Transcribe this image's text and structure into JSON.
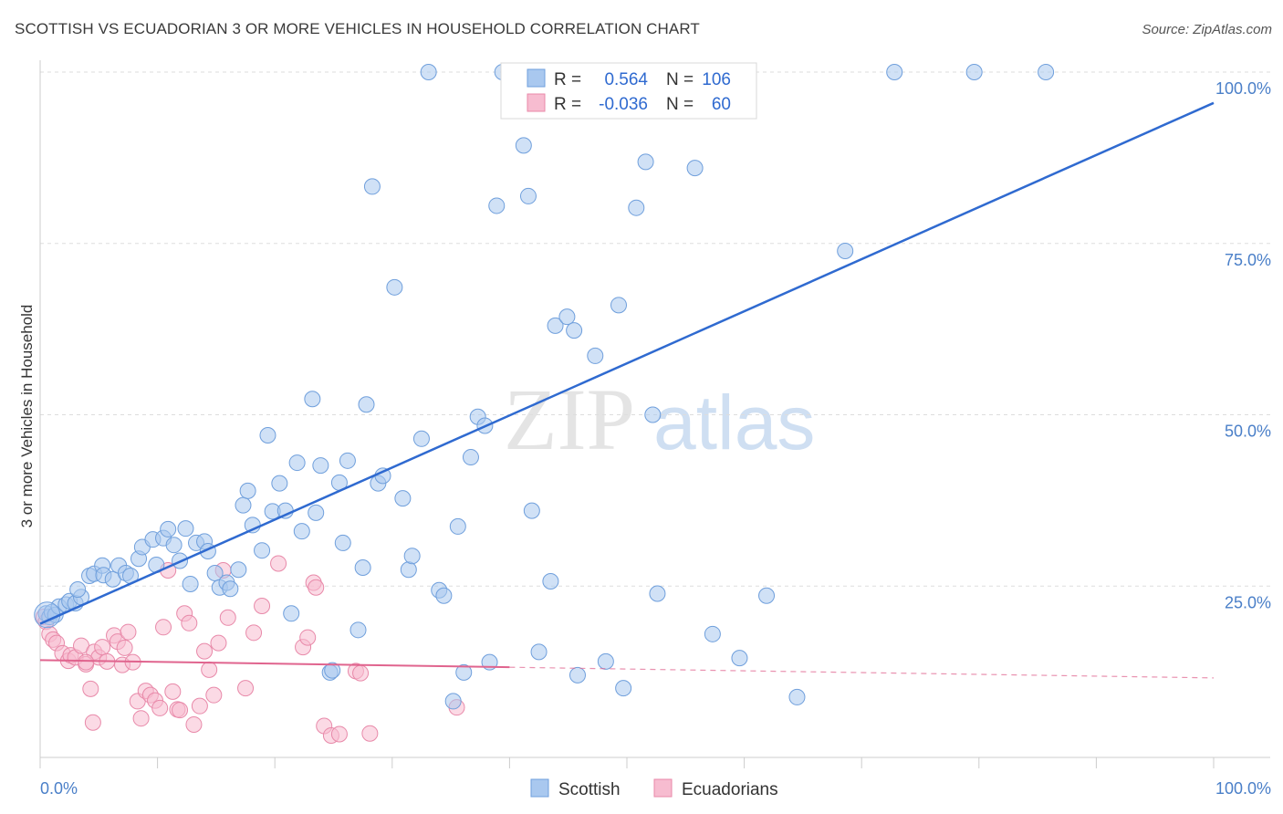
{
  "title": "SCOTTISH VS ECUADORIAN 3 OR MORE VEHICLES IN HOUSEHOLD CORRELATION CHART",
  "source": "Source: ZipAtlas.com",
  "watermark": {
    "zip": "ZIP",
    "atlas": "atlas"
  },
  "colors": {
    "scottish_fill": "#a9c8ef",
    "scottish_stroke": "#6f9fdc",
    "scottish_line": "#2f6ad0",
    "ecuadorian_fill": "#f7bcd0",
    "ecuadorian_stroke": "#e889a9",
    "ecuadorian_line": "#e0648e",
    "grid": "#dddddd",
    "tick_label": "#4a7fc8"
  },
  "legend": {
    "rows": [
      {
        "r_label": "R =",
        "r_value": "0.564",
        "n_label": "N =",
        "n_value": "106",
        "series": "scottish"
      },
      {
        "r_label": "R =",
        "r_value": "-0.036",
        "n_label": "N =",
        "n_value": "60",
        "series": "ecuadorian"
      }
    ]
  },
  "bottom_legend": [
    {
      "label": "Scottish",
      "series": "scottish"
    },
    {
      "label": "Ecuadorians",
      "series": "ecuadorian"
    }
  ],
  "chart_data": {
    "type": "scatter",
    "title": "SCOTTISH VS ECUADORIAN 3 OR MORE VEHICLES IN HOUSEHOLD CORRELATION CHART",
    "xlabel": "",
    "ylabel": "3 or more Vehicles in Household",
    "xlim": [
      0,
      100
    ],
    "ylim": [
      0,
      100
    ],
    "x_tick_labels": [
      "0.0%",
      "100.0%"
    ],
    "y_tick_labels": [
      "25.0%",
      "50.0%",
      "75.0%",
      "100.0%"
    ],
    "y_ticks": [
      25,
      50,
      75,
      100
    ],
    "grid": true,
    "legend_position": "top-center",
    "series": [
      {
        "name": "Scottish",
        "R": 0.564,
        "N": 106,
        "trend": {
          "x": [
            0,
            100
          ],
          "y": [
            19.5,
            95.5
          ],
          "dashed_from": null
        },
        "points": [
          [
            0.5,
            21
          ],
          [
            0.8,
            20.5
          ],
          [
            1.0,
            21.2
          ],
          [
            1.3,
            20.8
          ],
          [
            1.6,
            22
          ],
          [
            2.2,
            22.3
          ],
          [
            2.5,
            22.8
          ],
          [
            3.0,
            22.5
          ],
          [
            3.5,
            23.4
          ],
          [
            3.2,
            24.5
          ],
          [
            4.2,
            26.5
          ],
          [
            4.6,
            26.8
          ],
          [
            5.3,
            28
          ],
          [
            5.4,
            26.6
          ],
          [
            6.2,
            26
          ],
          [
            6.7,
            28
          ],
          [
            7.3,
            26.9
          ],
          [
            7.7,
            26.5
          ],
          [
            8.4,
            29
          ],
          [
            8.7,
            30.7
          ],
          [
            9.6,
            31.8
          ],
          [
            9.9,
            28.1
          ],
          [
            10.5,
            32
          ],
          [
            10.9,
            33.3
          ],
          [
            11.4,
            31
          ],
          [
            11.9,
            28.7
          ],
          [
            12.4,
            33.4
          ],
          [
            12.8,
            25.3
          ],
          [
            13.3,
            31.3
          ],
          [
            14.0,
            31.5
          ],
          [
            14.3,
            30.1
          ],
          [
            14.9,
            26.9
          ],
          [
            15.3,
            24.8
          ],
          [
            15.9,
            25.5
          ],
          [
            16.2,
            24.6
          ],
          [
            16.9,
            27.4
          ],
          [
            17.3,
            36.8
          ],
          [
            17.7,
            38.9
          ],
          [
            18.1,
            33.9
          ],
          [
            18.9,
            30.2
          ],
          [
            19.4,
            47
          ],
          [
            19.8,
            35.9
          ],
          [
            20.4,
            40
          ],
          [
            20.9,
            36
          ],
          [
            21.4,
            21
          ],
          [
            21.9,
            43
          ],
          [
            22.3,
            33
          ],
          [
            23.2,
            52.3
          ],
          [
            23.5,
            35.7
          ],
          [
            23.9,
            42.6
          ],
          [
            24.7,
            12.4
          ],
          [
            24.9,
            12.7
          ],
          [
            25.5,
            40.1
          ],
          [
            25.8,
            31.3
          ],
          [
            26.2,
            43.3
          ],
          [
            27.1,
            18.6
          ],
          [
            27.5,
            27.7
          ],
          [
            27.8,
            51.5
          ],
          [
            28.3,
            83.3
          ],
          [
            28.8,
            40
          ],
          [
            29.2,
            41.1
          ],
          [
            30.2,
            68.6
          ],
          [
            30.9,
            37.8
          ],
          [
            31.4,
            27.4
          ],
          [
            31.7,
            29.4
          ],
          [
            32.5,
            46.5
          ],
          [
            33.1,
            100
          ],
          [
            34.0,
            24.4
          ],
          [
            34.4,
            23.6
          ],
          [
            35.2,
            8.2
          ],
          [
            35.6,
            33.7
          ],
          [
            36.1,
            12.4
          ],
          [
            36.7,
            43.8
          ],
          [
            37.3,
            49.7
          ],
          [
            37.9,
            48.4
          ],
          [
            38.3,
            13.9
          ],
          [
            38.9,
            80.5
          ],
          [
            39.4,
            100
          ],
          [
            41.2,
            89.3
          ],
          [
            41.6,
            81.9
          ],
          [
            41.9,
            36
          ],
          [
            42.5,
            15.4
          ],
          [
            43.5,
            25.7
          ],
          [
            43.9,
            63
          ],
          [
            44.9,
            64.3
          ],
          [
            45.5,
            62.3
          ],
          [
            45.8,
            12
          ],
          [
            47.3,
            58.6
          ],
          [
            48.2,
            14
          ],
          [
            49.3,
            66
          ],
          [
            49.7,
            10.1
          ],
          [
            50.8,
            80.2
          ],
          [
            51.6,
            86.9
          ],
          [
            52.2,
            50
          ],
          [
            52.6,
            23.9
          ],
          [
            55.4,
            100
          ],
          [
            55.8,
            86
          ],
          [
            57.3,
            18
          ],
          [
            58.3,
            100
          ],
          [
            59.6,
            14.5
          ],
          [
            61.9,
            23.6
          ],
          [
            64.5,
            8.8
          ],
          [
            68.6,
            73.9
          ],
          [
            72.8,
            100
          ],
          [
            79.6,
            100
          ],
          [
            85.7,
            100
          ]
        ]
      },
      {
        "name": "Ecuadorians",
        "R": -0.036,
        "N": 60,
        "trend": {
          "x": [
            0,
            100
          ],
          "y": [
            14.2,
            11.6
          ],
          "dashed_from": 40
        },
        "points": [
          [
            0.3,
            20.5
          ],
          [
            0.5,
            19.8
          ],
          [
            0.8,
            18
          ],
          [
            1.1,
            17.2
          ],
          [
            1.4,
            16.7
          ],
          [
            1.9,
            15.2
          ],
          [
            2.4,
            14.1
          ],
          [
            2.6,
            14.9
          ],
          [
            3.0,
            14.6
          ],
          [
            3.5,
            16.3
          ],
          [
            3.9,
            13.6
          ],
          [
            4.3,
            10
          ],
          [
            4.6,
            15.4
          ],
          [
            5.0,
            14.6
          ],
          [
            5.3,
            16.1
          ],
          [
            5.7,
            14
          ],
          [
            6.3,
            17.8
          ],
          [
            6.6,
            16.9
          ],
          [
            7.0,
            13.5
          ],
          [
            7.2,
            16
          ],
          [
            7.5,
            18.3
          ],
          [
            7.9,
            13.9
          ],
          [
            8.3,
            8.2
          ],
          [
            8.6,
            5.7
          ],
          [
            9.0,
            9.7
          ],
          [
            9.4,
            9.1
          ],
          [
            9.8,
            8.3
          ],
          [
            10.2,
            7.2
          ],
          [
            10.5,
            19
          ],
          [
            10.9,
            27.3
          ],
          [
            11.3,
            9.6
          ],
          [
            11.7,
            7
          ],
          [
            11.9,
            6.9
          ],
          [
            12.3,
            21
          ],
          [
            12.7,
            19.6
          ],
          [
            13.1,
            4.8
          ],
          [
            13.6,
            7.5
          ],
          [
            14.0,
            15.5
          ],
          [
            14.4,
            12.8
          ],
          [
            14.8,
            9.1
          ],
          [
            15.2,
            16.7
          ],
          [
            15.6,
            27.3
          ],
          [
            16.0,
            20.4
          ],
          [
            17.5,
            10.1
          ],
          [
            18.2,
            18.2
          ],
          [
            18.9,
            22.1
          ],
          [
            20.3,
            28.3
          ],
          [
            22.4,
            16.1
          ],
          [
            22.8,
            17.5
          ],
          [
            23.3,
            25.5
          ],
          [
            23.5,
            24.8
          ],
          [
            24.2,
            4.6
          ],
          [
            24.8,
            3.2
          ],
          [
            25.5,
            3.4
          ],
          [
            26.9,
            12.6
          ],
          [
            27.3,
            12.3
          ],
          [
            28.1,
            3.5
          ],
          [
            35.5,
            7.3
          ],
          [
            3.9,
            13.9
          ],
          [
            4.5,
            5.1
          ]
        ]
      }
    ]
  }
}
